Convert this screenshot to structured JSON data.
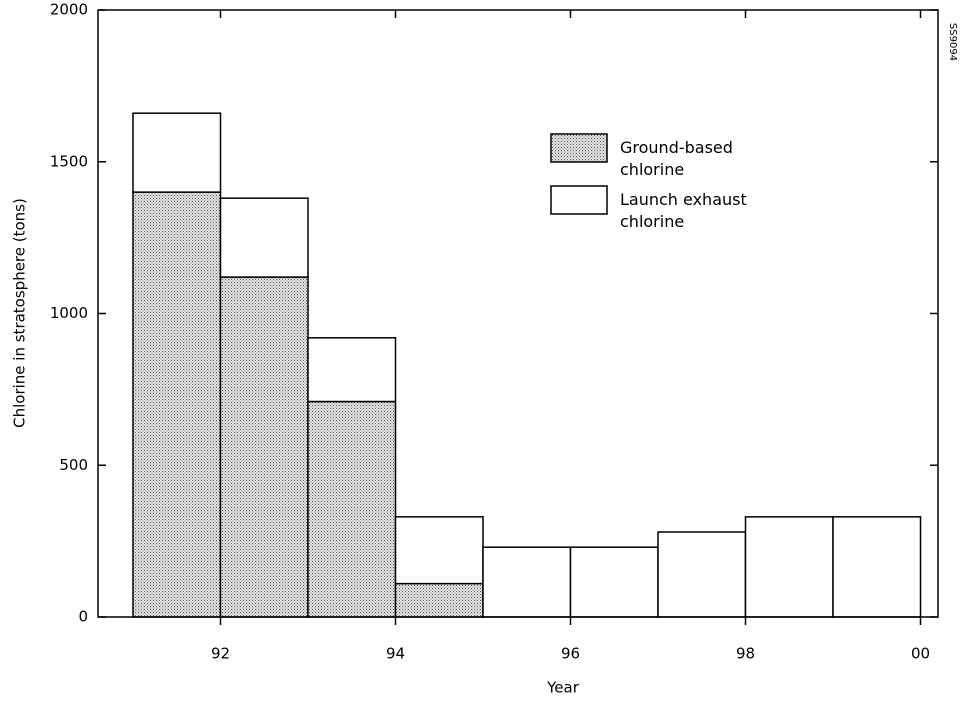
{
  "chart_data": {
    "type": "stacked-histogram",
    "x_label": "Year",
    "y_label": "Chlorine in stratosphere (tons)",
    "side_label": "SS9094",
    "bins": [
      91,
      92,
      93,
      94,
      95,
      96,
      97,
      98,
      99,
      100
    ],
    "series": [
      {
        "name": "Ground-based chlorine",
        "color": "#9a9a9a",
        "values": [
          1400,
          1120,
          710,
          110,
          0,
          0,
          0,
          0,
          0
        ]
      },
      {
        "name": "Launch exhaust chlorine",
        "color": "#ffffff",
        "values": [
          260,
          260,
          210,
          220,
          230,
          230,
          280,
          330,
          330
        ]
      }
    ],
    "xlim": [
      90.6,
      100.2
    ],
    "xticks": [
      92,
      94,
      96,
      98,
      {
        "value": 100,
        "label": "00"
      }
    ],
    "ylim": [
      0,
      2000
    ],
    "yticks": [
      0,
      500,
      1000,
      1500,
      2000
    ],
    "grid": false,
    "legend": "upper right"
  }
}
